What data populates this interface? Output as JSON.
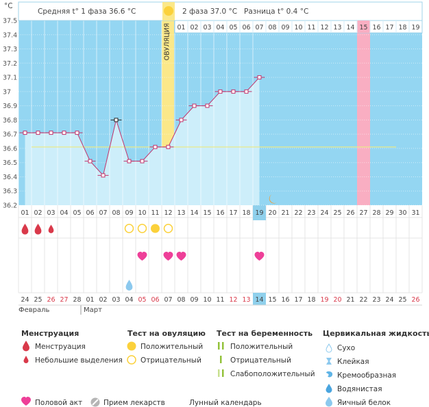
{
  "chart_data": {
    "type": "line",
    "y_unit": "°C",
    "ylim": [
      36.2,
      37.5
    ],
    "y_ticks": [
      "37.5",
      "37.4",
      "37.3",
      "37.2",
      "37.1",
      "37",
      "36.9",
      "36.8",
      "36.7",
      "36.6",
      "36.5",
      "36.4",
      "36.3",
      "36.2"
    ],
    "y_tick_values": [
      37.5,
      37.4,
      37.3,
      37.2,
      37.1,
      37.0,
      36.9,
      36.8,
      36.7,
      36.6,
      36.5,
      36.4,
      36.3,
      36.2
    ],
    "header": {
      "phase1": "Средняя t° 1 фаза 36.6 °C",
      "phase2": "2 фаза 37.0 °C",
      "diff": "Разница t° 0.4 °C"
    },
    "ovulation_label": "ОВУЛЯЦИЯ",
    "ovulation_day": 12,
    "highlight_day": 27,
    "today_day": 19,
    "cover_line": 36.61,
    "cycle_days": [
      "01",
      "02",
      "03",
      "04",
      "05",
      "06",
      "07",
      "08",
      "09",
      "10",
      "11",
      "12",
      "13",
      "14",
      "15",
      "16",
      "17",
      "18",
      "19",
      "20",
      "21",
      "22",
      "23",
      "24",
      "25",
      "26",
      "27",
      "28",
      "29",
      "30",
      "31"
    ],
    "phase2_day_labels": [
      "01",
      "02",
      "03",
      "04",
      "05",
      "06",
      "07",
      "08",
      "09",
      "10",
      "11",
      "12",
      "13",
      "14",
      "15",
      "16",
      "17",
      "18",
      "19"
    ],
    "temperatures": [
      36.71,
      36.71,
      36.71,
      36.71,
      36.71,
      36.51,
      36.41,
      36.8,
      36.51,
      36.51,
      36.61,
      36.61,
      36.8,
      36.9,
      36.9,
      37.0,
      37.0,
      37.0,
      37.1
    ],
    "special_points": [
      8
    ],
    "dates": [
      "24",
      "25",
      "26",
      "27",
      "28",
      "01",
      "02",
      "03",
      "04",
      "05",
      "06",
      "07",
      "08",
      "09",
      "10",
      "11",
      "12",
      "13",
      "14",
      "15",
      "16",
      "17",
      "18",
      "19",
      "20",
      "21",
      "22",
      "23",
      "24",
      "25",
      "26"
    ],
    "red_dates": [
      3,
      4,
      10,
      11,
      17,
      18,
      24,
      25,
      31
    ],
    "months": [
      {
        "label": "Февраль",
        "day": 1
      },
      {
        "label": "Март",
        "day": 6
      }
    ],
    "menstruation_days": [
      1,
      2,
      3
    ],
    "ovulation_test_days": [
      {
        "day": 9,
        "kind": "negative"
      },
      {
        "day": 10,
        "kind": "negative"
      },
      {
        "day": 11,
        "kind": "positive"
      },
      {
        "day": 12,
        "kind": "negative"
      }
    ],
    "sex_days": [
      10,
      12,
      13,
      19
    ],
    "cervical_days": [
      {
        "day": 9,
        "kind": "egg-white"
      }
    ],
    "moon_day": 20
  },
  "legend": {
    "menstruation": {
      "title": "Менструация",
      "items": [
        "Менструация",
        "Небольшие выделения"
      ]
    },
    "ovulation_test": {
      "title": "Тест на овуляцию",
      "items": [
        "Положительный",
        "Отрицательный"
      ]
    },
    "pregnancy_test": {
      "title": "Тест на беременность",
      "items": [
        "Положительный",
        "Отрицательный",
        "Слабоположительный"
      ]
    },
    "cervical": {
      "title": "Цервикальная жидкость",
      "items": [
        "Сухо",
        "Клейкая",
        "Кремообразная",
        "Водянистая",
        "Яичный белок"
      ]
    },
    "bottom": [
      "Половой акт",
      "Прием лекарств",
      "Лунный календарь"
    ]
  },
  "colors": {
    "sky": "#94d6f2",
    "fill": "#cdeefa",
    "line": "#c2336b",
    "ovulation": "#fbe889",
    "highlight": "#f9aec2",
    "today": "#8fd0ec",
    "red": "#d9394a",
    "heart": "#ee3f98",
    "sun": "#fbd13b",
    "drop": "#8cc9ee",
    "moon": "#f59a2a",
    "green": "#93c23a",
    "cover": "#e9ea8a"
  }
}
